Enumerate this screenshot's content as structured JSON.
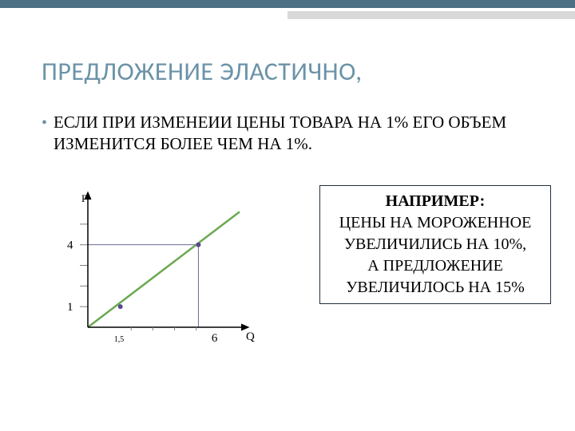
{
  "colors": {
    "top_bar_dark": "#4d7084",
    "top_bar_light": "#d9d9d9",
    "title_color": "#6b93a8",
    "bullet_color": "#6b93a8",
    "text_color": "#000000",
    "box_border": "#203040",
    "background": "#ffffff"
  },
  "title": "ПРЕДЛОЖЕНИЕ ЭЛАСТИЧНО,",
  "bullet": {
    "marker": "•",
    "text": "ЕСЛИ ПРИ ИЗМЕНЕИИ ЦЕНЫ ТОВАРА НА 1% ЕГО ОБЪЕМ ИЗМЕНИТСЯ БОЛЕЕ ЧЕМ НА 1%."
  },
  "chart": {
    "type": "line",
    "x_axis_label": "Q",
    "y_axis_label": "P",
    "ylim": [
      0,
      6
    ],
    "xlim": [
      0,
      7
    ],
    "y_ticks": [
      1,
      2,
      3,
      4,
      5
    ],
    "y_tick_labels_shown": {
      "1": "1",
      "4": "4"
    },
    "x_tick_labels_shown": {
      "1.5": "1,5",
      "6": "6"
    },
    "supply_line": {
      "points": [
        [
          0,
          0
        ],
        [
          7,
          5.6
        ]
      ],
      "color": "#6aa84f",
      "width": 2.5
    },
    "marked_points": [
      {
        "x": 1.5,
        "y": 1,
        "color": "#5a4a8a",
        "radius": 3
      },
      {
        "x": 5.1,
        "y": 4,
        "color": "#5a4a8a",
        "radius": 3
      }
    ],
    "guide_lines": {
      "color": "#6a6a9a",
      "width": 1,
      "segments": [
        [
          [
            0,
            4
          ],
          [
            5.1,
            4
          ]
        ],
        [
          [
            5.1,
            4
          ],
          [
            5.1,
            0
          ]
        ]
      ]
    },
    "axis_color": "#000000",
    "tick_mark_color": "#808080",
    "background_color": "#ffffff",
    "label_fontsize": 13,
    "tick_fontsize": 12
  },
  "example": {
    "heading": "НАПРИМЕР:",
    "line1": "ЦЕНЫ НА МОРОЖЕННОЕ УВЕЛИЧИЛИСЬ НА 10%,",
    "line2": "А ПРЕДЛОЖЕНИЕ УВЕЛИЧИЛОСЬ НА 15%"
  }
}
